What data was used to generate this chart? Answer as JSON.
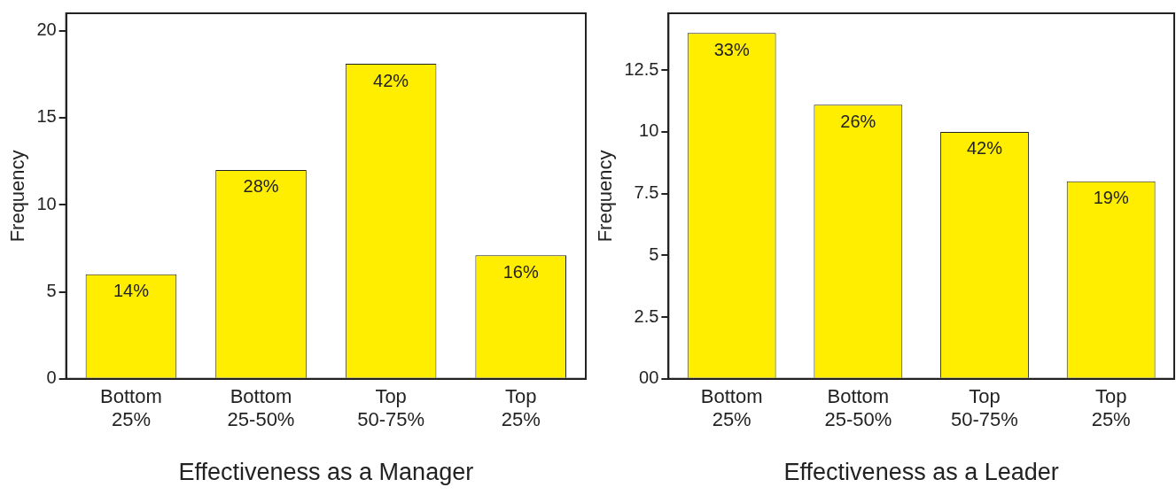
{
  "chart_data": [
    {
      "type": "bar",
      "xlabel": "Effectiveness as a Manager",
      "ylabel": "Frequency",
      "categories": [
        "Bottom 25%",
        "Bottom 25-50%",
        "Top 50-75%",
        "Top 25%"
      ],
      "values": [
        6,
        12,
        18.1,
        7.1
      ],
      "color": "#ffee00",
      "ylim": [
        0,
        21
      ],
      "yticks": [
        0,
        5,
        10,
        15,
        20
      ],
      "grid": false,
      "legend": false,
      "annotations": [
        {
          "text": "14%",
          "x": "Bottom 25%",
          "y": 6
        },
        {
          "text": "28%",
          "x": "Bottom 25-50%",
          "y": 12
        },
        {
          "text": "42%",
          "x": "Top 50-75%",
          "y": 18.1
        },
        {
          "text": "16%",
          "x": "Top 25%",
          "y": 7.1
        }
      ]
    },
    {
      "type": "bar",
      "xlabel": "Effectiveness as a Leader",
      "ylabel": "Frequency",
      "categories": [
        "Bottom 25%",
        "Bottom 25-50%",
        "Top 50-75%",
        "Top 25%"
      ],
      "values": [
        14,
        11.1,
        10,
        8
      ],
      "color": "#ffee00",
      "ylim": [
        0,
        14.8
      ],
      "yticks": [
        {
          "value": 0,
          "label": "00"
        },
        2.5,
        5,
        7.5,
        10,
        12.5
      ],
      "grid": false,
      "legend": false,
      "annotations": [
        {
          "text": "33%",
          "x": "Bottom 25%",
          "y": 14
        },
        {
          "text": "26%",
          "x": "Bottom 25-50%",
          "y": 11.1
        },
        {
          "text": "42%",
          "x": "Top 50-75%",
          "y": 10
        },
        {
          "text": "19%",
          "x": "Top 25%",
          "y": 8
        }
      ]
    }
  ]
}
